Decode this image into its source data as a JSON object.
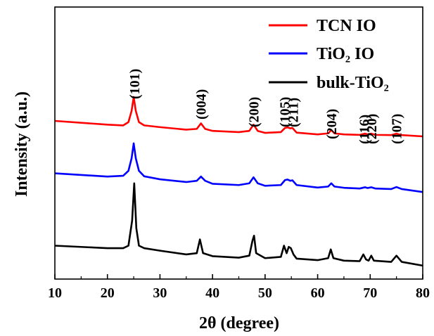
{
  "chart_data": {
    "type": "line",
    "title": "",
    "xlabel": "2θ (degree)",
    "ylabel": "Intensity (a.u.)",
    "xlim": [
      10,
      80
    ],
    "xticks": [
      10,
      20,
      30,
      40,
      50,
      60,
      70,
      80
    ],
    "ylim": [
      0,
      1
    ],
    "grid": false,
    "legend_position": "top-right",
    "series": [
      {
        "name": "TCN IO",
        "color": "#ff0000",
        "x": [
          10,
          20,
          23,
          24,
          24.6,
          25.0,
          25.4,
          26,
          27,
          30,
          35,
          37,
          37.8,
          38.6,
          40,
          45,
          47,
          47.8,
          48.6,
          50,
          53,
          53.8,
          54.3,
          54.8,
          55.2,
          56,
          60,
          62.0,
          62.6,
          63.2,
          65,
          68,
          69.0,
          69.5,
          70.2,
          71,
          74,
          75.0,
          76,
          80
        ],
        "y": [
          0.6,
          0.585,
          0.582,
          0.595,
          0.64,
          0.696,
          0.64,
          0.595,
          0.582,
          0.575,
          0.565,
          0.568,
          0.59,
          0.568,
          0.56,
          0.555,
          0.56,
          0.585,
          0.56,
          0.552,
          0.555,
          0.572,
          0.574,
          0.57,
          0.572,
          0.553,
          0.546,
          0.55,
          0.563,
          0.55,
          0.546,
          0.544,
          0.549,
          0.546,
          0.549,
          0.544,
          0.543,
          0.549,
          0.543,
          0.538
        ]
      },
      {
        "name": "TiO₂ IO",
        "color": "#0000ff",
        "x": [
          10,
          20,
          23,
          24,
          24.6,
          25.0,
          25.4,
          26,
          27,
          30,
          35,
          37,
          37.8,
          38.6,
          40,
          45,
          47,
          47.8,
          48.6,
          50,
          53,
          53.8,
          54.3,
          54.8,
          55.2,
          56,
          60,
          62.0,
          62.6,
          63.2,
          65,
          68,
          69.0,
          69.5,
          70.2,
          71,
          74,
          75.0,
          76,
          80
        ],
        "y": [
          0.39,
          0.377,
          0.38,
          0.4,
          0.45,
          0.51,
          0.45,
          0.4,
          0.378,
          0.366,
          0.355,
          0.36,
          0.377,
          0.36,
          0.348,
          0.343,
          0.35,
          0.374,
          0.35,
          0.34,
          0.343,
          0.363,
          0.365,
          0.36,
          0.362,
          0.343,
          0.333,
          0.337,
          0.35,
          0.337,
          0.332,
          0.329,
          0.334,
          0.331,
          0.334,
          0.329,
          0.327,
          0.335,
          0.327,
          0.315
        ]
      },
      {
        "name": "bulk-TiO₂",
        "color": "#000000",
        "x": [
          10,
          20,
          23,
          24,
          24.7,
          25.1,
          25.5,
          26,
          27,
          30,
          35,
          37,
          37.6,
          38.2,
          40,
          45,
          47,
          47.6,
          47.9,
          48.3,
          50,
          53,
          53.6,
          54.1,
          54.5,
          54.9,
          55.4,
          56,
          60,
          62.0,
          62.5,
          63.0,
          65,
          68,
          68.7,
          69.2,
          69.7,
          70.2,
          70.7,
          74,
          75.0,
          76,
          80
        ],
        "y": [
          0.1,
          0.09,
          0.09,
          0.1,
          0.2,
          0.35,
          0.17,
          0.1,
          0.09,
          0.08,
          0.065,
          0.07,
          0.125,
          0.07,
          0.058,
          0.052,
          0.06,
          0.12,
          0.14,
          0.07,
          0.05,
          0.055,
          0.1,
          0.07,
          0.095,
          0.09,
          0.065,
          0.048,
          0.042,
          0.05,
          0.085,
          0.05,
          0.04,
          0.038,
          0.065,
          0.045,
          0.04,
          0.06,
          0.04,
          0.035,
          0.06,
          0.035,
          0.02
        ]
      }
    ],
    "annotations": [
      {
        "text": "(101)",
        "x": 25.1
      },
      {
        "text": "(004)",
        "x": 37.8
      },
      {
        "text": "(200)",
        "x": 47.8
      },
      {
        "text": "(105)",
        "x": 53.7
      },
      {
        "text": "(211)",
        "x": 55.3
      },
      {
        "text": "(204)",
        "x": 62.6
      },
      {
        "text": "(116)",
        "x": 68.8
      },
      {
        "text": "(220)",
        "x": 70.2
      },
      {
        "text": "(107)",
        "x": 75.0
      }
    ]
  }
}
